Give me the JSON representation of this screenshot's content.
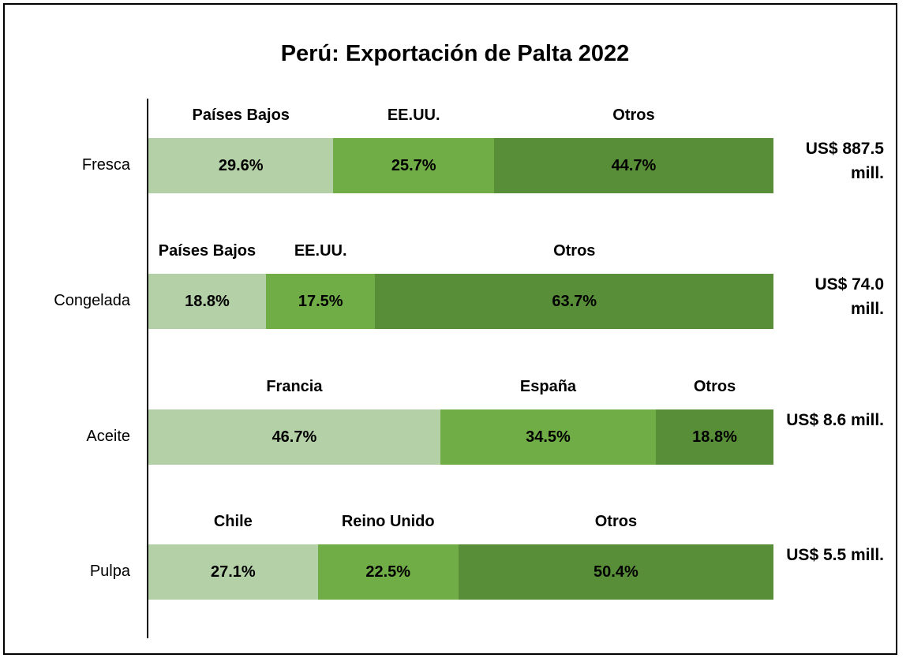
{
  "chart_data": {
    "type": "stacked_bar_100",
    "title": "Perú: Exportación de Palta 2022",
    "categories": [
      "Fresca",
      "Congelada",
      "Aceite",
      "Pulpa"
    ],
    "xlim": [
      0,
      100
    ],
    "series": [
      {
        "color": "#b4d0a6",
        "labels": [
          "Países Bajos",
          "Países Bajos",
          "Francia",
          "Chile"
        ],
        "values": [
          29.6,
          18.8,
          46.7,
          27.1
        ],
        "value_labels": [
          "29.6%",
          "18.8%",
          "46.7%",
          "27.1%"
        ]
      },
      {
        "color": "#70ad47",
        "labels": [
          "EE.UU.",
          "EE.UU.",
          "España",
          "Reino Unido"
        ],
        "values": [
          25.7,
          17.5,
          34.5,
          22.5
        ],
        "value_labels": [
          "25.7%",
          "17.5%",
          "34.5%",
          "22.5%"
        ]
      },
      {
        "color": "#588e38",
        "labels": [
          "Otros",
          "Otros",
          "Otros",
          "Otros"
        ],
        "values": [
          44.7,
          63.7,
          18.8,
          50.4
        ],
        "value_labels": [
          "44.7%",
          "63.7%",
          "18.8%",
          "50.4%"
        ]
      }
    ],
    "totals": {
      "values": [
        887.5,
        74.0,
        8.6,
        5.5
      ],
      "value_labels": [
        "US$ 887.5 mill.",
        "US$ 74.0 mill.",
        "US$ 8.6 mill.",
        "US$ 5.5 mill."
      ]
    }
  }
}
